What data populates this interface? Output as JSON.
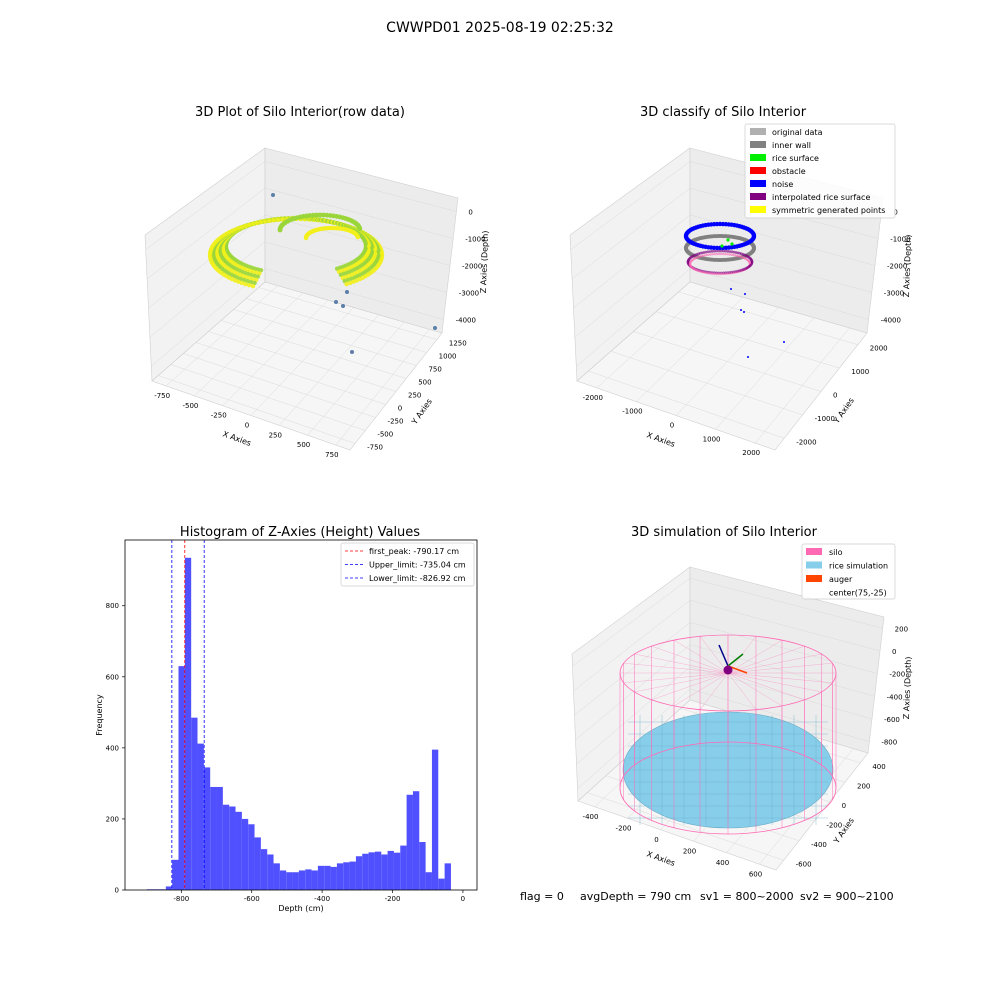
{
  "suptitle": "CWWPD01 2025-08-19 02:25:32",
  "panels": {
    "raw": {
      "title": "3D Plot of Silo Interior(row data)",
      "xlabel": "X Axies",
      "ylabel": "Y Axies",
      "zlabel": "Z Axies (Depth)",
      "xticks": [
        "-750",
        "-500",
        "-250",
        "0",
        "250",
        "500",
        "750"
      ],
      "yticks": [
        "-750",
        "-500",
        "-250",
        "0",
        "250",
        "500",
        "750",
        "1000",
        "1250"
      ],
      "zticks": [
        "0",
        "-1000",
        "-2000",
        "-3000",
        "-4000"
      ],
      "colors": {
        "surface_a": "#9ad63a",
        "surface_b": "#f2ef1a",
        "outlier": "#5b7fa8"
      }
    },
    "classify": {
      "title": "3D classify of Silo Interior",
      "xlabel": "X Axies",
      "ylabel": "Y Axies",
      "zlabel": "Z Axies (Depth)",
      "xticks": [
        "-2000",
        "-1000",
        "0",
        "1000",
        "2000"
      ],
      "yticks": [
        "-2000",
        "-1000",
        "0",
        "1000",
        "2000"
      ],
      "zticks": [
        "0",
        "-1000",
        "-2000",
        "-3000",
        "-4000"
      ],
      "legend": [
        {
          "label": "original data",
          "color": "#b0b0b0"
        },
        {
          "label": "inner wall",
          "color": "#808080"
        },
        {
          "label": "rice surface",
          "color": "#00ee00"
        },
        {
          "label": "obstacle",
          "color": "#ff0000"
        },
        {
          "label": "noise",
          "color": "#0000ff"
        },
        {
          "label": "interpolated rice surface",
          "color": "#800080"
        },
        {
          "label": "symmetric generated points",
          "color": "#ffff00"
        }
      ]
    },
    "simulation": {
      "title": "3D simulation of Silo Interior",
      "xlabel": "X Axies",
      "ylabel": "Y Axies",
      "zlabel": "Z Axies (Depth)",
      "xticks": [
        "-400",
        "-200",
        "0",
        "200",
        "400",
        "600"
      ],
      "yticks": [
        "-600",
        "-400",
        "-200",
        "0",
        "200",
        "400"
      ],
      "zticks": [
        "200",
        "0",
        "-200",
        "-400",
        "-600",
        "-800"
      ],
      "legend": [
        {
          "label": "silo",
          "color": "#ff69b4"
        },
        {
          "label": "rice simulation",
          "color": "#87ceeb"
        },
        {
          "label": "auger",
          "color": "#ff4500"
        },
        {
          "label": "center(75,-25)",
          "color": ""
        }
      ]
    }
  },
  "chart_data": {
    "type": "bar",
    "title": "Histogram of Z-Axies (Height) Values",
    "xlabel": "Depth (cm)",
    "ylabel": "Frequency",
    "xlim": [
      -960,
      40
    ],
    "ylim": [
      0,
      985
    ],
    "xticks": [
      -800,
      -600,
      -400,
      -200,
      0
    ],
    "yticks": [
      0,
      200,
      400,
      600,
      800
    ],
    "bar_color": "#5050ff",
    "bin_width": 18,
    "bin_lefts": [
      -898,
      -880,
      -862,
      -844,
      -826,
      -808,
      -790,
      -772,
      -754,
      -736,
      -718,
      -700,
      -682,
      -664,
      -646,
      -628,
      -610,
      -592,
      -574,
      -556,
      -538,
      -520,
      -502,
      -484,
      -466,
      -448,
      -430,
      -412,
      -394,
      -376,
      -358,
      -340,
      -322,
      -304,
      -286,
      -268,
      -250,
      -232,
      -214,
      -196,
      -178,
      -160,
      -142,
      -124,
      -106,
      -88,
      -70,
      -52,
      -34,
      -16
    ],
    "counts": [
      2,
      2,
      2,
      10,
      85,
      630,
      935,
      485,
      412,
      345,
      290,
      290,
      240,
      235,
      220,
      200,
      185,
      148,
      115,
      100,
      75,
      55,
      50,
      50,
      55,
      58,
      55,
      68,
      68,
      65,
      75,
      78,
      80,
      95,
      102,
      106,
      108,
      100,
      110,
      105,
      125,
      268,
      278,
      135,
      50,
      395,
      32,
      75,
      0,
      0
    ],
    "lines": [
      {
        "label": "first_peak: -790.17 cm",
        "x": -790.17,
        "color": "#ff0000"
      },
      {
        "label": "Upper_limit: -735.04 cm",
        "x": -735.04,
        "color": "#0000ff"
      },
      {
        "label": "Lower_limit: -826.92 cm",
        "x": -826.92,
        "color": "#0000ff"
      }
    ],
    "legend_loc": "upper right",
    "grid": false
  },
  "footer": {
    "flag": "flag = 0",
    "avg": "avgDepth = 790 cm",
    "sv1": "sv1 = 800~2000",
    "sv2": "sv2 = 900~2100"
  }
}
